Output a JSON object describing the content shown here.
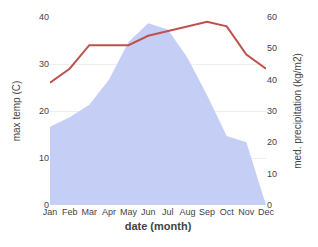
{
  "chart_data": {
    "type": "line",
    "xlabel": "date (month)",
    "ylabel": "max temp (C)",
    "y2label": "med. precipitation (kg/m2)",
    "categories": [
      "Jan",
      "Feb",
      "Mar",
      "Apr",
      "May",
      "Jun",
      "Jul",
      "Aug",
      "Sep",
      "Oct",
      "Nov",
      "Dec"
    ],
    "series": [
      {
        "type": "area",
        "axis": "y2",
        "color": "#c5cff5",
        "values": [
          25,
          28,
          32,
          40,
          52,
          58,
          56,
          47,
          35,
          22,
          20,
          0
        ]
      },
      {
        "type": "line",
        "color": "#c0504d",
        "values": [
          26,
          29,
          34,
          34,
          34,
          36,
          37,
          38,
          39,
          38,
          32,
          29
        ]
      }
    ],
    "ylim": [
      0,
      40
    ],
    "yticks": [
      0,
      10,
      20,
      30,
      40
    ],
    "y2lim": [
      0,
      60
    ],
    "y2ticks": [
      0,
      10,
      20,
      30,
      40,
      50,
      60
    ],
    "grid": true
  }
}
